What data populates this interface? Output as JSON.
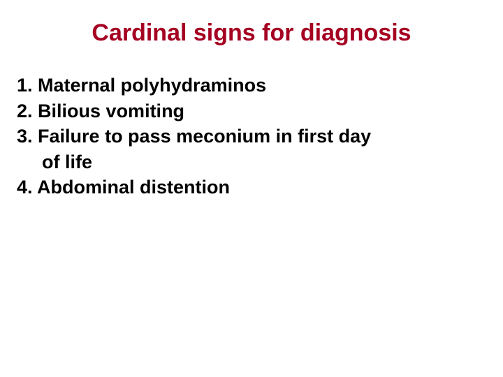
{
  "slide": {
    "title": "Cardinal signs for diagnosis",
    "title_color": "#a50021",
    "title_fontsize": 34,
    "item_color": "#000000",
    "item_fontsize": 27,
    "background_color": "#ffffff",
    "items": [
      {
        "number": "1.",
        "text": "Maternal polyhydraminos"
      },
      {
        "number": "2.",
        "text": "Bilious vomiting"
      },
      {
        "number": "3.",
        "text": "Failure to pass meconium in first day"
      },
      {
        "number": "",
        "text": "of life",
        "indent": true
      },
      {
        "number": "4.",
        "text": "Abdominal distention"
      }
    ]
  }
}
